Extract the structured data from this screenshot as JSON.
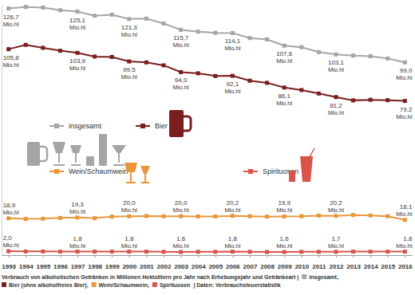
{
  "chart_data": {
    "type": "line",
    "caption": {
      "text": "Verbrauch von alkoholischen Getränken in Millionen Hektolitern pro Jahr nach Erhebungsjahr und Getränkeart |",
      "keys": [
        "insgesamt,",
        "Bier (ohne alkoholfreies Bier),",
        "Wein/Schaumwein,",
        "Spirituosen"
      ],
      "source": "| Daten: Verbrauchsteuerstatistik"
    },
    "unit": "Mio.hl",
    "x": [
      1993,
      1994,
      1995,
      1996,
      1997,
      1998,
      1999,
      2000,
      2001,
      2002,
      2003,
      2004,
      2005,
      2006,
      2007,
      2008,
      2009,
      2010,
      2011,
      2012,
      2013,
      2014,
      2015,
      2016
    ],
    "xlim": [
      1992.6,
      2016.4
    ],
    "xticks": [
      1993,
      1994,
      1995,
      1996,
      1997,
      1998,
      1999,
      2000,
      2001,
      2002,
      2003,
      2004,
      2005,
      2006,
      2007,
      2008,
      2009,
      2010,
      2011,
      2012,
      2013,
      2014,
      2015,
      2016
    ],
    "ylim": [
      0,
      129
    ],
    "tick_labels": "x",
    "marker": "square",
    "data_labels": true,
    "series": [
      {
        "name": "insgesamt",
        "color": "#a5a5a5",
        "values": [
          126.7,
          127.5,
          127.2,
          125.8,
          125.1,
          123.0,
          123.5,
          121.3,
          121.5,
          119.0,
          115.7,
          114.8,
          114.2,
          114.1,
          111.5,
          110.8,
          107.6,
          106.8,
          104.3,
          103.1,
          102.5,
          102.2,
          101.0,
          99.0
        ],
        "value_labels": [
          "126,7",
          null,
          null,
          null,
          "125,1",
          null,
          null,
          "121,3",
          null,
          null,
          "115,7",
          null,
          null,
          "114,1",
          null,
          null,
          "107,6",
          null,
          null,
          "103,1",
          null,
          null,
          null,
          "99,0"
        ]
      },
      {
        "name": "Bier",
        "color": "#7a1e1e",
        "values": [
          105.8,
          108.0,
          106.5,
          105.0,
          103.9,
          102.0,
          101.8,
          99.5,
          99.0,
          97.5,
          94.0,
          93.4,
          92.0,
          92.1,
          89.6,
          88.5,
          86.1,
          84.8,
          83.0,
          81.2,
          79.5,
          79.8,
          79.6,
          79.2
        ],
        "value_labels": [
          "105,8",
          null,
          null,
          null,
          "103,9",
          null,
          null,
          "99,5",
          null,
          null,
          "94,0",
          null,
          null,
          "92,1",
          null,
          null,
          "86,1",
          null,
          null,
          "81,2",
          null,
          null,
          null,
          "79,2"
        ]
      },
      {
        "name": "Wein/Schaumwein",
        "color": "#e8963c",
        "values": [
          18.9,
          18.6,
          18.7,
          19.1,
          19.3,
          19.0,
          19.8,
          20.0,
          20.1,
          20.0,
          20.0,
          19.9,
          19.9,
          20.2,
          20.0,
          19.8,
          19.9,
          20.0,
          20.3,
          20.2,
          20.6,
          20.4,
          20.0,
          18.1
        ],
        "value_labels": [
          "18,9",
          null,
          null,
          null,
          "19,3",
          null,
          null,
          "20,0",
          null,
          null,
          "20,0",
          null,
          null,
          "20,2",
          null,
          null,
          "19,9",
          null,
          null,
          "20,2",
          null,
          null,
          null,
          "18,1"
        ]
      },
      {
        "name": "Spirituosen",
        "color": "#d9534a",
        "values": [
          2.0,
          1.9,
          1.9,
          1.8,
          1.8,
          1.8,
          1.8,
          1.8,
          1.8,
          1.7,
          1.6,
          1.7,
          1.7,
          1.8,
          1.7,
          1.6,
          1.6,
          1.7,
          1.7,
          1.7,
          1.8,
          1.8,
          1.8,
          1.8
        ],
        "value_labels": [
          "2,0",
          null,
          null,
          null,
          "1,8",
          null,
          null,
          "1,8",
          null,
          null,
          "1,6",
          null,
          null,
          "1,8",
          null,
          null,
          "1,6",
          null,
          null,
          "1,7",
          null,
          null,
          null,
          "1,8"
        ]
      }
    ]
  }
}
